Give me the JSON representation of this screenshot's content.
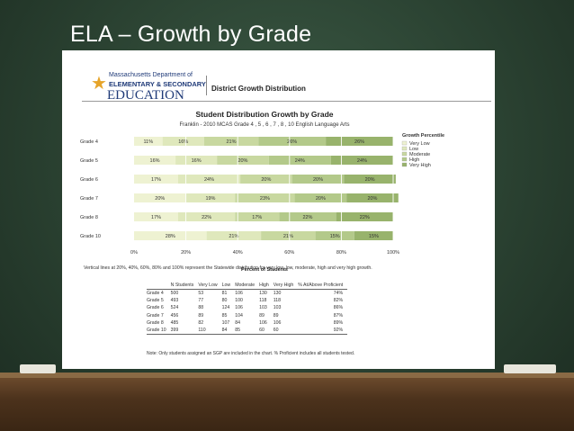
{
  "slide": {
    "title": "ELA – Growth by Grade"
  },
  "header": {
    "agency_line1": "Massachusetts Department of",
    "agency_line2": "ELEMENTARY & SECONDARY",
    "agency_line3": "EDUCATION",
    "doc_title": "District Growth Distribution"
  },
  "colors": {
    "very_low": "#eef2d2",
    "low": "#dfe8bc",
    "moderate": "#c8d8a0",
    "high": "#b3c98a",
    "very_high": "#98b36c",
    "board": "#2f4a37",
    "title_text": "#ffffff"
  },
  "chart_data": {
    "type": "bar",
    "orientation": "horizontal-stacked-100",
    "title": "Student Distribution Growth by Grade",
    "subtitle": "Franklin - 2010 MCAS Grade 4 , 5 , 6 , 7 , 8 , 10 English Language Arts",
    "categories": [
      "Grade  4",
      "Grade  5",
      "Grade  6",
      "Grade  7",
      "Grade  8",
      "Grade  10"
    ],
    "series": [
      {
        "name": "Very Low",
        "values": [
          11,
          16,
          17,
          20,
          17,
          28
        ]
      },
      {
        "name": "Low",
        "values": [
          16,
          16,
          24,
          19,
          22,
          21
        ]
      },
      {
        "name": "Moderate",
        "values": [
          21,
          20,
          20,
          23,
          17,
          21
        ]
      },
      {
        "name": "High",
        "values": [
          26,
          24,
          20,
          20,
          22,
          15
        ]
      },
      {
        "name": "Very High",
        "values": [
          26,
          24,
          20,
          20,
          22,
          15
        ]
      }
    ],
    "value_labels": [
      [
        "11%",
        "16%",
        "21%",
        "26%",
        "26%"
      ],
      [
        "16%",
        "16%",
        "20%",
        "24%",
        "24%"
      ],
      [
        "17%",
        "24%",
        "20%",
        "20%",
        "20%"
      ],
      [
        "20%",
        "19%",
        "23%",
        "20%",
        "20%"
      ],
      [
        "17%",
        "22%",
        "17%",
        "22%",
        "22%"
      ],
      [
        "28%",
        "21%",
        "21%",
        "15%",
        "15%"
      ]
    ],
    "x_ticks": [
      "0%",
      "20%",
      "40%",
      "60%",
      "80%",
      "100%"
    ],
    "xlabel": "Percent of Students",
    "xlim": [
      0,
      100
    ],
    "legend_title": "Growth Percentile",
    "legend_position": "right",
    "note": "Vertical lines at 20%, 40%, 60%, 80% and 100% represent the Statewide distribution for very low, low, moderate, high and very high growth."
  },
  "table": {
    "headers": [
      "",
      "N Students",
      "Very Low",
      "Low",
      "Moderate",
      "High",
      "Very High",
      "% At/Above Proficient"
    ],
    "rows": [
      [
        "Grade  4",
        "500",
        "53",
        "81",
        "106",
        "130",
        "130",
        "74%"
      ],
      [
        "Grade  5",
        "493",
        "77",
        "80",
        "100",
        "118",
        "118",
        "82%"
      ],
      [
        "Grade  6",
        "524",
        "88",
        "124",
        "106",
        "103",
        "103",
        "86%"
      ],
      [
        "Grade  7",
        "456",
        "89",
        "85",
        "104",
        "89",
        "89",
        "87%"
      ],
      [
        "Grade  8",
        "485",
        "82",
        "107",
        "84",
        "106",
        "106",
        "89%"
      ],
      [
        "Grade  10",
        "399",
        "110",
        "84",
        "85",
        "60",
        "60",
        "92%"
      ]
    ],
    "note": "Note: Only students assigned an SGP are included in the chart.  % Proficient includes all students tested."
  }
}
